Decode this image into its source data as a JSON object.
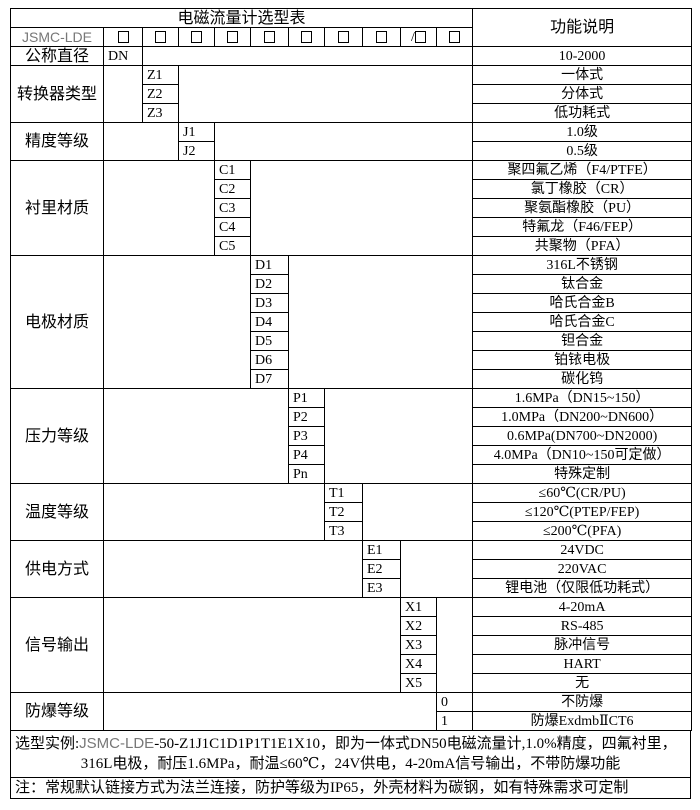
{
  "header": {
    "title": "电磁流量计选型表",
    "function_header": "功能说明",
    "model_prefix": "JSMC-LDE",
    "code_slots": [
      "□",
      "□",
      "□",
      "□",
      "□",
      "□",
      "□",
      "□",
      "/□",
      "□"
    ]
  },
  "groups": [
    {
      "label": "公称直径",
      "column": 1,
      "items": [
        {
          "code": "DN",
          "desc": "10-2000"
        }
      ]
    },
    {
      "label": "转换器类型",
      "column": 2,
      "items": [
        {
          "code": "Z1",
          "desc": "一体式"
        },
        {
          "code": "Z2",
          "desc": "分体式"
        },
        {
          "code": "Z3",
          "desc": "低功耗式"
        }
      ]
    },
    {
      "label": "精度等级",
      "column": 3,
      "items": [
        {
          "code": "J1",
          "desc": "1.0级"
        },
        {
          "code": "J2",
          "desc": "0.5级"
        }
      ]
    },
    {
      "label": "衬里材质",
      "column": 4,
      "items": [
        {
          "code": "C1",
          "desc": "聚四氟乙烯（F4/PTFE）"
        },
        {
          "code": "C2",
          "desc": "氯丁橡胶（CR）"
        },
        {
          "code": "C3",
          "desc": "聚氨酯橡胶（PU）"
        },
        {
          "code": "C4",
          "desc": "特氟龙（F46/FEP）"
        },
        {
          "code": "C5",
          "desc": "共聚物（PFA）"
        }
      ]
    },
    {
      "label": "电极材质",
      "column": 5,
      "items": [
        {
          "code": "D1",
          "desc": "316L不锈钢"
        },
        {
          "code": "D2",
          "desc": "钛合金"
        },
        {
          "code": "D3",
          "desc": "哈氏合金B"
        },
        {
          "code": "D4",
          "desc": "哈氏合金C"
        },
        {
          "code": "D5",
          "desc": "钽合金"
        },
        {
          "code": "D6",
          "desc": "铂铱电极"
        },
        {
          "code": "D7",
          "desc": "碳化钨"
        }
      ]
    },
    {
      "label": "压力等级",
      "column": 6,
      "items": [
        {
          "code": "P1",
          "desc": "1.6MPa（DN15~150）"
        },
        {
          "code": "P2",
          "desc": "1.0MPa（DN200~DN600）"
        },
        {
          "code": "P3",
          "desc": "0.6MPa(DN700~DN2000)"
        },
        {
          "code": "P4",
          "desc": "4.0MPa（DN10~150可定做）"
        },
        {
          "code": "Pn",
          "desc": "特殊定制"
        }
      ]
    },
    {
      "label": "温度等级",
      "column": 7,
      "items": [
        {
          "code": "T1",
          "desc": "≤60℃(CR/PU)"
        },
        {
          "code": "T2",
          "desc": "≤120℃(PTEP/FEP)"
        },
        {
          "code": "T3",
          "desc": "≤200℃(PFA)"
        }
      ]
    },
    {
      "label": "供电方式",
      "column": 8,
      "items": [
        {
          "code": "E1",
          "desc": "24VDC"
        },
        {
          "code": "E2",
          "desc": "220VAC"
        },
        {
          "code": "E3",
          "desc": "锂电池（仅限低功耗式）"
        }
      ]
    },
    {
      "label": "信号输出",
      "column": 9,
      "items": [
        {
          "code": "X1",
          "desc": "4-20mA"
        },
        {
          "code": "X2",
          "desc": "RS-485"
        },
        {
          "code": "X3",
          "desc": "脉冲信号"
        },
        {
          "code": "X4",
          "desc": "HART"
        },
        {
          "code": "X5",
          "desc": "无"
        }
      ]
    },
    {
      "label": "防爆等级",
      "column": 10,
      "items": [
        {
          "code": "0",
          "desc": "不防爆"
        },
        {
          "code": "1",
          "desc": "防爆ExdmbⅡCT6"
        }
      ]
    }
  ],
  "example": {
    "prefix": "选型实例:",
    "model": "JSMC-LDE",
    "rest_line1": "-50-Z1J1C1D1P1T1E1X10，即为一体式DN50电磁流量计,1.0%精度，四氟衬里，",
    "line2": "316L电极，耐压1.6MPa，耐温≤60℃，24V供电，4-20mA信号输出，不带防爆功能"
  },
  "note": "注：常规默认链接方式为法兰连接，防护等级为IP65，外壳材料为碳钢，如有特殊需求可定制"
}
